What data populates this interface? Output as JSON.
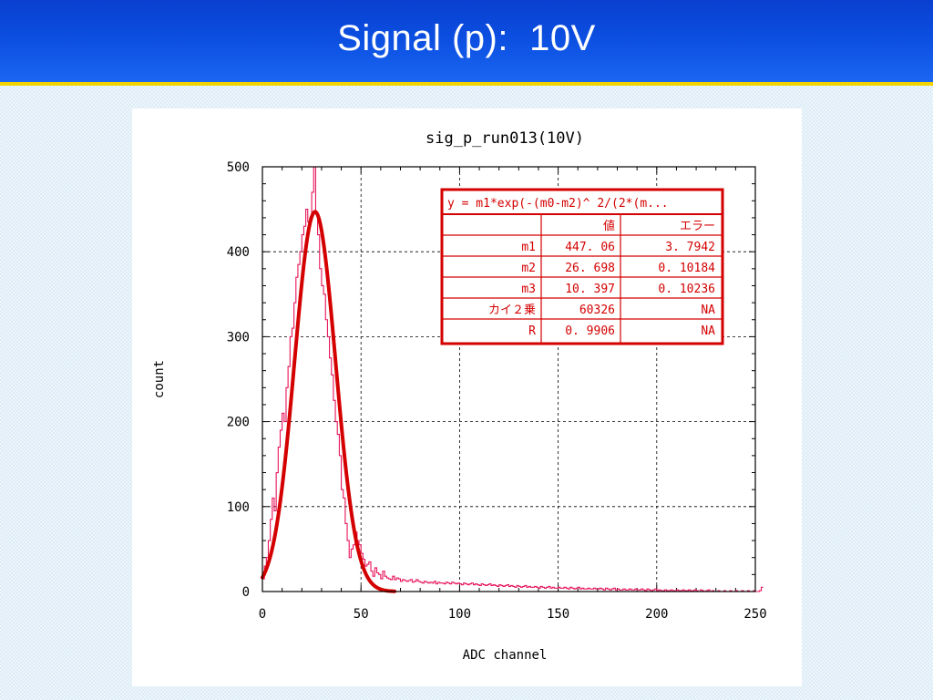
{
  "slide": {
    "title": "Signal (p):  10V"
  },
  "chart_data": {
    "type": "line",
    "title": "sig_p_run013(10V)",
    "xlabel": "ADC channel",
    "ylabel": "count",
    "xlim": [
      0,
      250
    ],
    "ylim": [
      0,
      500
    ],
    "x_ticks": [
      "0",
      "50",
      "100",
      "150",
      "200",
      "250"
    ],
    "y_ticks": [
      "0",
      "100",
      "200",
      "300",
      "400",
      "500"
    ],
    "grid": true,
    "histogram_color": "#e8145a",
    "fit_color": "#d40000",
    "histogram": {
      "bin_width": 1,
      "x_start": 0,
      "counts": [
        15,
        30,
        40,
        60,
        85,
        110,
        95,
        140,
        170,
        190,
        210,
        200,
        240,
        265,
        300,
        310,
        340,
        370,
        385,
        400,
        420,
        430,
        450,
        435,
        440,
        470,
        500,
        445,
        420,
        380,
        360,
        350,
        320,
        300,
        275,
        255,
        225,
        200,
        185,
        160,
        120,
        110,
        80,
        60,
        40,
        50,
        55,
        70,
        60,
        55,
        45,
        38,
        30,
        32,
        35,
        24,
        18,
        28,
        22,
        20,
        15,
        24,
        18,
        16,
        15,
        14,
        18,
        14,
        16,
        15,
        12,
        14,
        13,
        12,
        13,
        14,
        11,
        12,
        14,
        12,
        11,
        10,
        12,
        11,
        10,
        11,
        10,
        12,
        9,
        11,
        10,
        10,
        9,
        11,
        10,
        9,
        11,
        10,
        9,
        10,
        9,
        8,
        10,
        9,
        8,
        9,
        10,
        8,
        9,
        8,
        7,
        9,
        8,
        7,
        8,
        9,
        7,
        8,
        7,
        6,
        8,
        7,
        6,
        7,
        8,
        6,
        7,
        6,
        5,
        7,
        6,
        5,
        6,
        7,
        5,
        6,
        5,
        5,
        6,
        5,
        4,
        6,
        5,
        4,
        5,
        6,
        4,
        5,
        4,
        4,
        5,
        4,
        4,
        5,
        4,
        3,
        5,
        4,
        3,
        4,
        5,
        3,
        4,
        3,
        3,
        4,
        3,
        3,
        4,
        3,
        3,
        4,
        3,
        2,
        4,
        3,
        2,
        3,
        4,
        2,
        3,
        2,
        2,
        3,
        2,
        2,
        3,
        2,
        2,
        3,
        2,
        2,
        3,
        2,
        1,
        3,
        2,
        1,
        2,
        3,
        1,
        2,
        1,
        1,
        2,
        1,
        1,
        2,
        1,
        1,
        2,
        1,
        1,
        2,
        1,
        1,
        2,
        1,
        1,
        2,
        1,
        0,
        2,
        1,
        0,
        1,
        2,
        0,
        1,
        0,
        0,
        1,
        0,
        0,
        1,
        0,
        0,
        1,
        0,
        0,
        1,
        0,
        0,
        1,
        0,
        0,
        1,
        0,
        0,
        1,
        0,
        0,
        1,
        5
      ]
    },
    "fit": {
      "formula": "gaussian",
      "m1": 447.06,
      "m2": 26.698,
      "m3": 10.397,
      "x_range": [
        0,
        67
      ]
    },
    "fit_table": {
      "header_formula": "y = m1*exp(-(m0-m2)^ 2/(2*(m...",
      "col_value": "値",
      "col_error": "エラー",
      "rows": [
        {
          "name": "m1",
          "value": "447. 06",
          "error": "3. 7942"
        },
        {
          "name": "m2",
          "value": "26. 698",
          "error": "0. 10184"
        },
        {
          "name": "m3",
          "value": "10. 397",
          "error": "0. 10236"
        },
        {
          "name": "カイ２乗",
          "value": "60326",
          "error": "NA"
        },
        {
          "name": "R",
          "value": "0. 9906",
          "error": "NA"
        }
      ]
    }
  }
}
